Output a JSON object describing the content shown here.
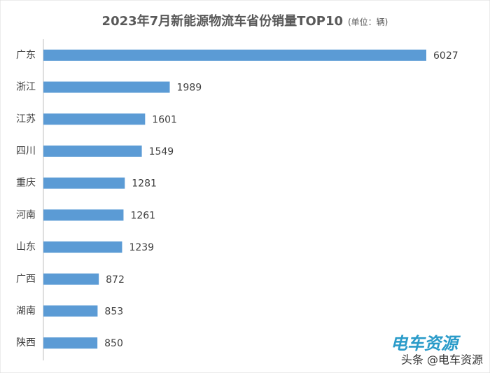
{
  "chart_data": {
    "type": "bar",
    "orientation": "horizontal",
    "title": "2023年7月新能源物流车省份销量TOP10",
    "subtitle": "(单位：辆)",
    "categories": [
      "广东",
      "浙江",
      "江苏",
      "四川",
      "重庆",
      "河南",
      "山东",
      "广西",
      "湖南",
      "陕西"
    ],
    "values": [
      6027,
      1989,
      1601,
      1549,
      1281,
      1261,
      1239,
      872,
      853,
      850
    ],
    "color": "#5b9bd5",
    "data_labels": true
  },
  "watermark": {
    "logo": "电车资源",
    "credit": "头条 @电车资源"
  }
}
